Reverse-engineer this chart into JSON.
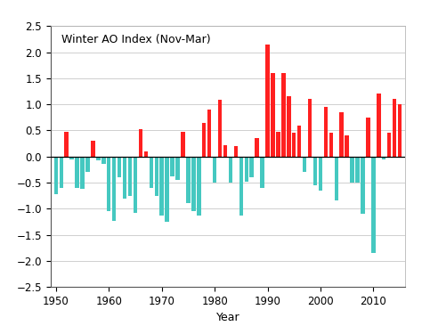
{
  "years": [
    1950,
    1951,
    1952,
    1953,
    1954,
    1955,
    1956,
    1957,
    1958,
    1959,
    1960,
    1961,
    1962,
    1963,
    1964,
    1965,
    1966,
    1967,
    1968,
    1969,
    1970,
    1971,
    1972,
    1973,
    1974,
    1975,
    1976,
    1977,
    1978,
    1979,
    1980,
    1981,
    1982,
    1983,
    1984,
    1985,
    1986,
    1987,
    1988,
    1989,
    1990,
    1991,
    1992,
    1993,
    1994,
    1995,
    1996,
    1997,
    1998,
    1999,
    2000,
    2001,
    2002,
    2003,
    2004,
    2005,
    2006,
    2007,
    2008,
    2009,
    2010,
    2011,
    2012,
    2013,
    2014,
    2015
  ],
  "values": [
    -0.72,
    -0.6,
    0.47,
    -0.05,
    -0.6,
    -0.62,
    -0.3,
    0.3,
    -0.08,
    -0.15,
    -1.05,
    -1.23,
    -0.4,
    -0.8,
    -0.75,
    -1.08,
    0.52,
    0.1,
    -0.6,
    -0.75,
    -1.14,
    -1.25,
    -0.38,
    -0.45,
    0.47,
    -0.9,
    -1.05,
    -1.14,
    0.65,
    0.9,
    -0.5,
    1.08,
    0.22,
    -0.5,
    0.2,
    -1.14,
    -0.48,
    -0.4,
    0.35,
    -0.6,
    2.15,
    1.6,
    0.47,
    1.6,
    1.15,
    0.45,
    0.6,
    -0.3,
    1.1,
    -0.55,
    -0.65,
    0.95,
    0.45,
    -0.85,
    0.85,
    0.4,
    -0.5,
    -0.5,
    -1.1,
    0.75,
    -1.85,
    1.2,
    -0.05,
    0.45,
    1.1,
    1.0
  ],
  "pos_color": "#FF2020",
  "neg_color": "#45C8C0",
  "title": "Winter AO Index (Nov-Mar)",
  "xlabel": "Year",
  "ylabel": "",
  "ylim": [
    -2.5,
    2.5
  ],
  "yticks": [
    -2.5,
    -2.0,
    -1.5,
    -1.0,
    -0.5,
    0.0,
    0.5,
    1.0,
    1.5,
    2.0,
    2.5
  ],
  "xlim": [
    1949,
    2016
  ],
  "xticks": [
    1950,
    1960,
    1970,
    1980,
    1990,
    2000,
    2010
  ],
  "background_color": "#ffffff",
  "grid_color": "#c8c8c8",
  "title_fontsize": 9,
  "axis_fontsize": 9,
  "tick_fontsize": 8.5,
  "bar_width": 0.75
}
